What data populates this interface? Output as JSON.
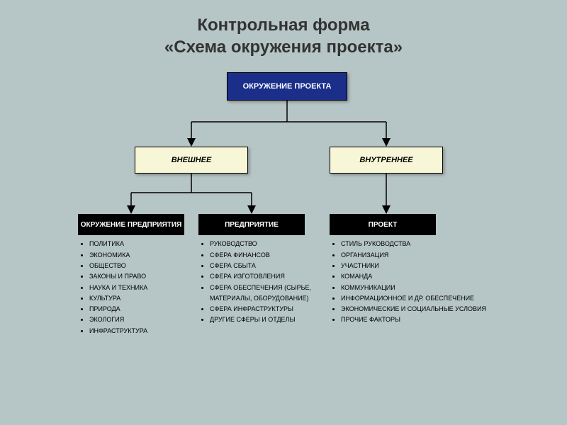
{
  "title_line1": "Контрольная форма",
  "title_line2": "«Схема окружения проекта»",
  "root": "ОКРУЖЕНИЕ ПРОЕКТА",
  "mid": {
    "left": "ВНЕШНЕЕ",
    "right": "ВНУТРЕННЕЕ"
  },
  "leaf": {
    "h1": "ОКРУЖЕНИЕ ПРЕДПРИЯТИЯ",
    "h2": "ПРЕДПРИЯТИЕ",
    "h3": "ПРОЕКТ"
  },
  "lists": {
    "l1": [
      "ПОЛИТИКА",
      "ЭКОНОМИКА",
      "ОБЩЕСТВО",
      "ЗАКОНЫ И ПРАВО",
      "НАУКА И ТЕХНИКА",
      "КУЛЬТУРА",
      "ПРИРОДА",
      "ЭКОЛОГИЯ",
      "ИНФРАСТРУКТУРА"
    ],
    "l2": [
      "РУКОВОДСТВО",
      "СФЕРА ФИНАНСОВ",
      "СФЕРА СБЫТА",
      "СФЕРА ИЗГОТОВЛЕНИЯ",
      "СФЕРА ОБЕСПЕЧЕНИЯ (СЫРЬЕ, МАТЕРИАЛЫ, ОБОРУДОВАНИЕ)",
      "СФЕРА ИНФРАСТРУКТУРЫ",
      "ДРУГИЕ СФЕРЫ И ОТДЕЛЫ"
    ],
    "l3": [
      "СТИЛЬ РУКОВОДСТВА",
      "ОРГАНИЗАЦИЯ",
      "УЧАСТНИКИ",
      "КОМАНДА",
      "КОММУНИКАЦИИ",
      "ИНФОРМАЦИОННОЕ И ДР. ОБЕСПЕЧЕНИЕ",
      "ЭКОНОМИЧЕСКИЕ И СОЦИАЛЬНЫЕ УСЛОВИЯ",
      "ПРОЧИЕ ФАКТОРЫ"
    ]
  },
  "colors": {
    "bg": "#b6c5c5",
    "root_bg": "#1a2e8a",
    "mid_bg": "#f7f7d8",
    "leaf_bg": "#000000",
    "line": "#000000"
  },
  "structure": {
    "type": "tree",
    "nodes": [
      {
        "id": "root",
        "label": "ОКРУЖЕНИЕ ПРОЕКТА"
      },
      {
        "id": "ext",
        "label": "ВНЕШНЕЕ",
        "parent": "root"
      },
      {
        "id": "int",
        "label": "ВНУТРЕННЕЕ",
        "parent": "root"
      },
      {
        "id": "env",
        "label": "ОКРУЖЕНИЕ ПРЕДПРИЯТИЯ",
        "parent": "ext"
      },
      {
        "id": "ent",
        "label": "ПРЕДПРИЯТИЕ",
        "parent": "ext"
      },
      {
        "id": "proj",
        "label": "ПРОЕКТ",
        "parent": "int"
      }
    ]
  }
}
